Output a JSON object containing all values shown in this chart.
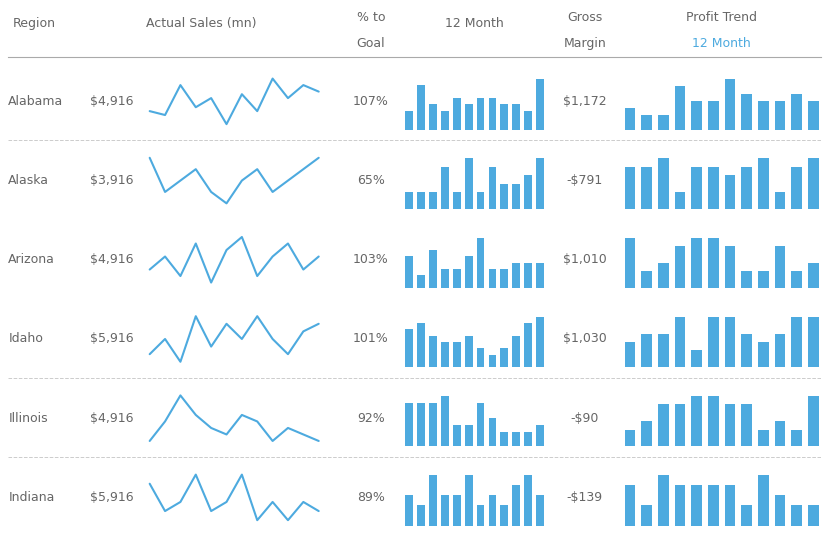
{
  "regions": [
    "Alabama",
    "Alaska",
    "Arizona",
    "Idaho",
    "Illinois",
    "Indiana"
  ],
  "actual_sales": [
    "$4,916",
    "$3,916",
    "$4,916",
    "$5,916",
    "$4,916",
    "$5,916"
  ],
  "pct_to_goal": [
    "107%",
    "65%",
    "103%",
    "101%",
    "92%",
    "89%"
  ],
  "gross_margin": [
    "$1,172",
    "-$791",
    "$1,010",
    "$1,030",
    "-$90",
    "-$139"
  ],
  "bar_color": "#4DAADF",
  "line_color": "#4DAADF",
  "bg_color": "#ffffff",
  "text_color": "#666666",
  "header_dark": "#888888",
  "header_blue": "#4DAADF",
  "sep_color": "#cccccc",
  "line_sparklines": [
    [
      2.5,
      2.2,
      4.5,
      2.8,
      3.5,
      1.5,
      3.8,
      2.5,
      5.0,
      3.5,
      4.5,
      4.0
    ],
    [
      4.0,
      2.5,
      3.0,
      3.5,
      2.5,
      2.0,
      3.0,
      3.5,
      2.5,
      3.0,
      3.5,
      4.0
    ],
    [
      3.0,
      4.0,
      2.5,
      5.0,
      2.0,
      4.5,
      5.5,
      2.5,
      4.0,
      5.0,
      3.0,
      4.0
    ],
    [
      2.5,
      3.5,
      2.0,
      5.0,
      3.0,
      4.5,
      3.5,
      5.0,
      3.5,
      2.5,
      4.0,
      4.5
    ],
    [
      1.5,
      3.0,
      5.0,
      3.5,
      2.5,
      2.0,
      3.5,
      3.0,
      1.5,
      2.5,
      2.0,
      1.5
    ],
    [
      3.5,
      2.0,
      2.5,
      4.0,
      2.0,
      2.5,
      4.0,
      1.5,
      2.5,
      1.5,
      2.5,
      2.0
    ]
  ],
  "bar12month": [
    [
      3,
      7,
      4,
      3,
      5,
      4,
      5,
      5,
      4,
      4,
      3,
      8
    ],
    [
      2,
      2,
      2,
      5,
      2,
      6,
      2,
      5,
      3,
      3,
      4,
      6
    ],
    [
      5,
      2,
      6,
      3,
      3,
      5,
      8,
      3,
      3,
      4,
      4,
      4
    ],
    [
      6,
      7,
      5,
      4,
      4,
      5,
      3,
      2,
      3,
      5,
      7,
      8
    ],
    [
      6,
      6,
      6,
      7,
      3,
      3,
      6,
      4,
      2,
      2,
      2,
      3
    ],
    [
      3,
      2,
      5,
      3,
      3,
      5,
      2,
      3,
      2,
      4,
      5,
      3
    ]
  ],
  "profit_trend": [
    [
      3,
      2,
      2,
      6,
      4,
      4,
      7,
      5,
      4,
      4,
      5,
      4
    ],
    [
      5,
      5,
      6,
      2,
      5,
      5,
      4,
      5,
      6,
      2,
      5,
      6
    ],
    [
      6,
      2,
      3,
      5,
      6,
      6,
      5,
      2,
      2,
      5,
      2,
      3
    ],
    [
      3,
      4,
      4,
      6,
      2,
      6,
      6,
      4,
      3,
      4,
      6,
      6
    ],
    [
      2,
      3,
      5,
      5,
      6,
      6,
      5,
      5,
      2,
      3,
      2,
      6
    ],
    [
      4,
      2,
      5,
      4,
      4,
      4,
      4,
      2,
      5,
      3,
      2,
      2
    ]
  ]
}
